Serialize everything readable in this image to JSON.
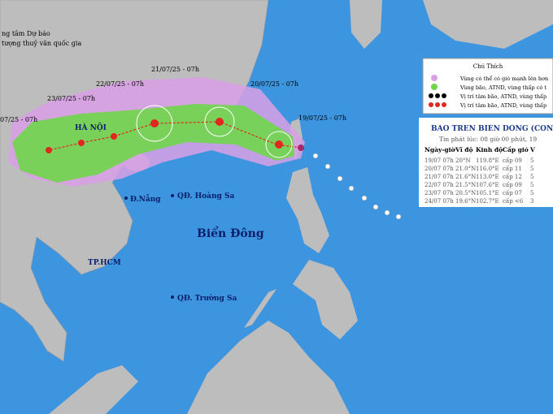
{
  "header": {
    "line1": "ng tâm Dự báo",
    "line2": "tượng thuỷ văn quốc gia"
  },
  "track_labels": [
    "19/07/25 - 07h",
    "20/07/25 - 07h",
    "21/07/25 - 07h",
    "22/07/25 - 07h",
    "23/07/25 - 07h",
    "07/25 - 07h"
  ],
  "places": {
    "hanoi": "HÀ NỘI",
    "danang": "Đ.Nẵng",
    "hoangsa": "QĐ. Hoàng Sa",
    "sea": "Biển Đông",
    "hcm": "TP.HCM",
    "truongsa": "QĐ. Trường Sa"
  },
  "legend": {
    "title": "Chú Thích",
    "items": [
      "Vùng có thể có gió mạnh lên hơn",
      "Vùng bão, ATND, vùng thấp có t",
      "Vị trí tâm bão, ATND, vùng thấp",
      "Vị trí tâm bão, ATND, vùng thấp"
    ]
  },
  "table": {
    "title": "BAO TREN BIEN DONG (CON B",
    "subtitle": "Tin phát lúc: 08 giờ 00 phút, 19",
    "headers": [
      "Ngày-giờ",
      "Vĩ độ",
      "Kinh độ",
      "Cấp gió",
      "V"
    ],
    "rows": [
      [
        "19/07 07h",
        "20°N",
        "119.8°E",
        "cấp 09",
        "5"
      ],
      [
        "20/07 07h",
        "21.0°N",
        "116.0°E",
        "cấp 11",
        "5"
      ],
      [
        "21/07 07h",
        "21.6°N",
        "113.0°E",
        "cấp 12",
        "5"
      ],
      [
        "22/07 07h",
        "21.5°N",
        "107.6°E",
        "cấp 09",
        "5"
      ],
      [
        "23/07 07h",
        "20.5°N",
        "105.1°E",
        "cấp 07",
        "5"
      ],
      [
        "24/07 07h",
        "19.6°N",
        "102.7°E",
        "cấp <6",
        "3"
      ]
    ]
  }
}
